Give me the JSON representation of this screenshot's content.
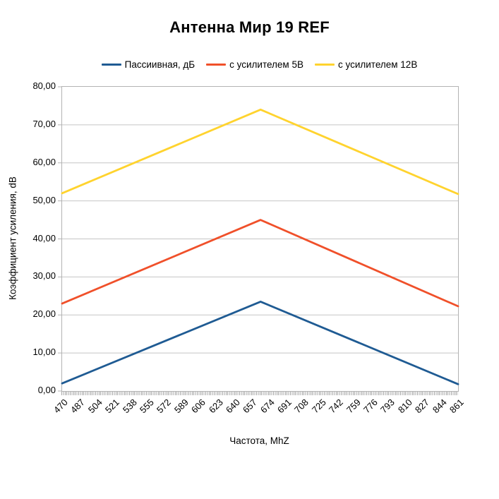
{
  "title": "Антенна Мир 19 REF",
  "axes": {
    "y_title": "Коэффициент усиления, dB",
    "x_title": "Частота, MhZ"
  },
  "chart_data": {
    "type": "line",
    "title": "Антенна Мир 19 REF",
    "xlabel": "Частота, MhZ",
    "ylabel": "Коэффициент усиления, dB",
    "xlim": [
      470,
      861
    ],
    "ylim": [
      0,
      80
    ],
    "grid": "horizontal",
    "legend_position": "top",
    "x_tick_labels": [
      470,
      487,
      504,
      521,
      538,
      555,
      572,
      589,
      606,
      623,
      640,
      657,
      674,
      691,
      708,
      725,
      742,
      759,
      776,
      793,
      810,
      827,
      844,
      861
    ],
    "y_ticks": [
      0,
      10,
      20,
      30,
      40,
      50,
      60,
      70,
      80
    ],
    "y_tick_labels": [
      "0,00",
      "10,00",
      "20,00",
      "30,00",
      "40,00",
      "50,00",
      "60,00",
      "70,00",
      "80,00"
    ],
    "series": [
      {
        "name": "Пассиивная, дБ",
        "color": "#1f5b93",
        "points": [
          [
            470,
            2
          ],
          [
            666,
            23.5
          ],
          [
            861,
            1.8
          ]
        ]
      },
      {
        "name": "с усилителем 5В",
        "color": "#f0502a",
        "points": [
          [
            470,
            23
          ],
          [
            666,
            45
          ],
          [
            861,
            22.3
          ]
        ]
      },
      {
        "name": "с усилителем 12В",
        "color": "#ffd32e",
        "points": [
          [
            470,
            52
          ],
          [
            666,
            74
          ],
          [
            861,
            51.8
          ]
        ]
      }
    ],
    "grid_color": "#c5c5c5",
    "axis_color": "#b3b3b3"
  }
}
